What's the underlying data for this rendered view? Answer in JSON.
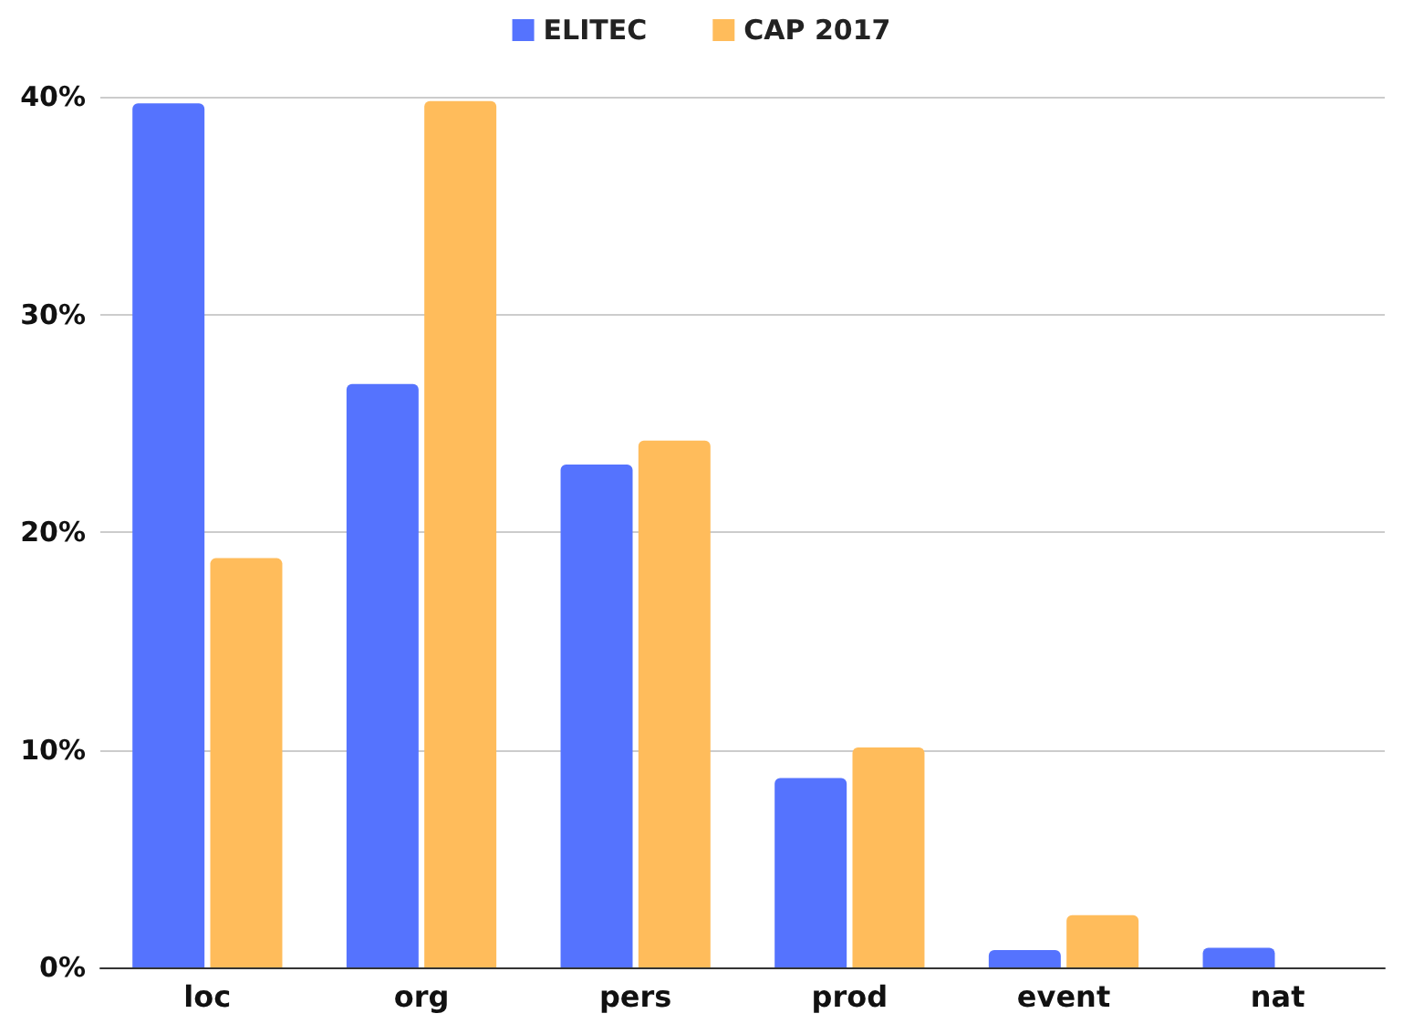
{
  "chart_data": {
    "type": "bar",
    "categories": [
      "loc",
      "org",
      "pers",
      "prod",
      "event",
      "nat"
    ],
    "series": [
      {
        "name": "ELITEC",
        "color": "#5573fe",
        "values": [
          39.7,
          26.8,
          23.1,
          8.7,
          0.8,
          0.9
        ]
      },
      {
        "name": "CAP 2017",
        "color": "#ffbc5b",
        "values": [
          18.8,
          39.8,
          24.2,
          10.1,
          2.4,
          null
        ]
      }
    ],
    "ylim": [
      0,
      40
    ],
    "yticks": [
      {
        "value": 0,
        "label": "0%"
      },
      {
        "value": 10,
        "label": "10%"
      },
      {
        "value": 20,
        "label": "20%"
      },
      {
        "value": 30,
        "label": "30%"
      },
      {
        "value": 40,
        "label": "40%"
      }
    ],
    "grid": "y",
    "legend": "top"
  }
}
